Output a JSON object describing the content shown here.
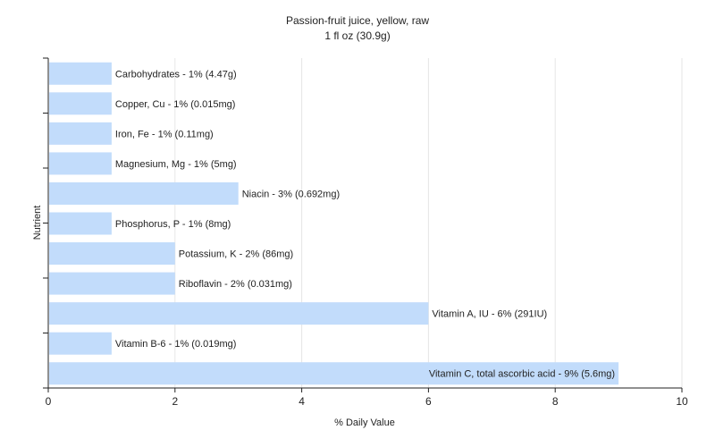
{
  "chart_data": {
    "type": "bar",
    "orientation": "horizontal",
    "title": "Passion-fruit juice, yellow, raw",
    "subtitle": "1 fl oz (30.9g)",
    "xlabel": "% Daily Value",
    "ylabel": "Nutrient",
    "xlim": [
      0,
      10
    ],
    "xticks": [
      "0",
      "2",
      "4",
      "6",
      "8",
      "10"
    ],
    "grid": true,
    "bar_color": "#c2dcfb",
    "categories": [
      "Carbohydrates",
      "Copper, Cu",
      "Iron, Fe",
      "Magnesium, Mg",
      "Niacin",
      "Phosphorus, P",
      "Potassium, K",
      "Riboflavin",
      "Vitamin A, IU",
      "Vitamin B-6",
      "Vitamin C, total ascorbic acid"
    ],
    "values": [
      1,
      1,
      1,
      1,
      3,
      1,
      2,
      2,
      6,
      1,
      9
    ],
    "labels": [
      "Carbohydrates - 1% (4.47g)",
      "Copper, Cu - 1% (0.015mg)",
      "Iron, Fe - 1% (0.11mg)",
      "Magnesium, Mg - 1% (5mg)",
      "Niacin - 3% (0.692mg)",
      "Phosphorus, P - 1% (8mg)",
      "Potassium, K - 2% (86mg)",
      "Riboflavin - 2% (0.031mg)",
      "Vitamin A, IU - 6% (291IU)",
      "Vitamin B-6 - 1% (0.019mg)",
      "Vitamin C, total ascorbic acid - 9% (5.6mg)"
    ]
  }
}
